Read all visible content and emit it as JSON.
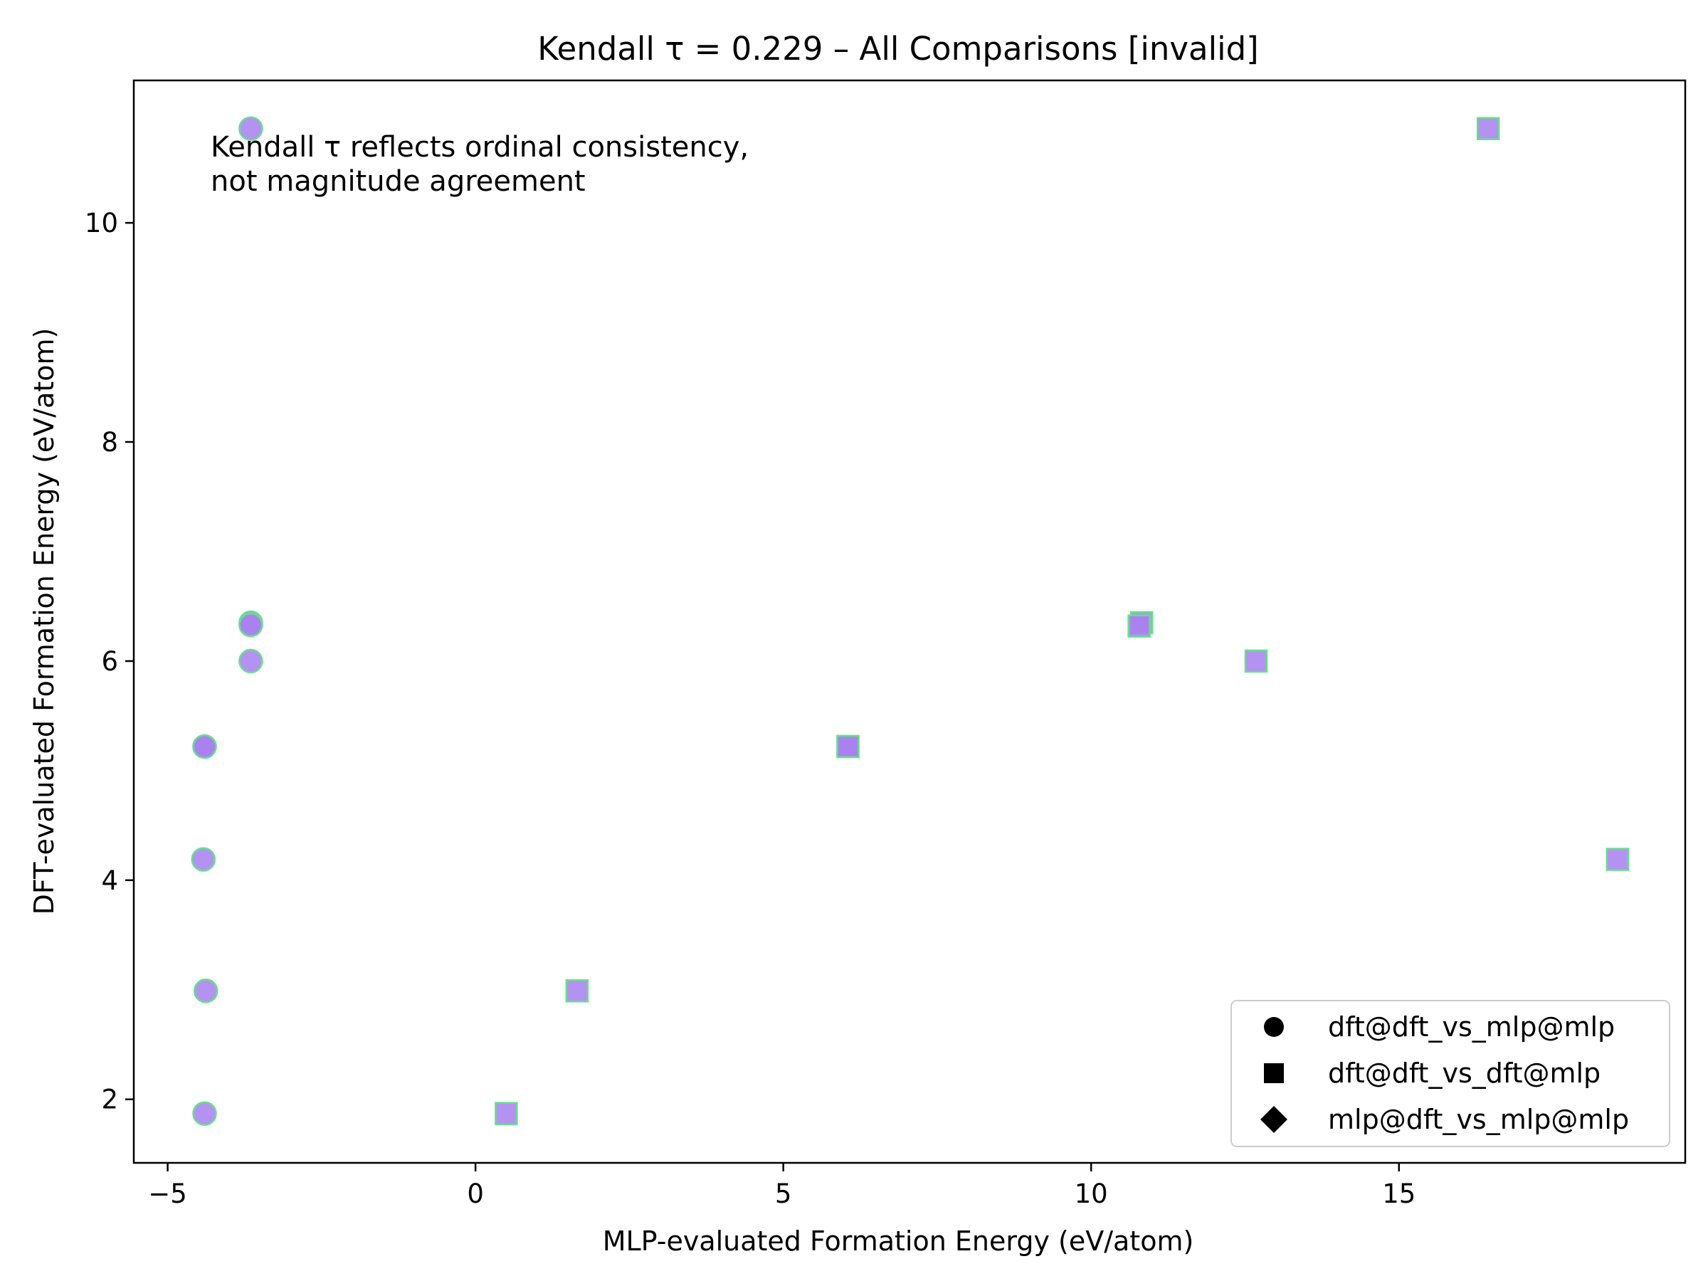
{
  "chart_data": {
    "type": "scatter",
    "title": "Kendall τ = 0.229 – All Comparisons [invalid]",
    "xlabel": "MLP-evaluated Formation Energy (eV/atom)",
    "ylabel": "DFT-evaluated Formation Energy (eV/atom)",
    "xlim": [
      -5.55,
      19.65
    ],
    "ylim": [
      1.42,
      11.3
    ],
    "xticks": [
      -5,
      0,
      5,
      10,
      15
    ],
    "xtick_labels": [
      "−5",
      "0",
      "5",
      "10",
      "15"
    ],
    "yticks": [
      2,
      4,
      6,
      8,
      10
    ],
    "ytick_labels": [
      "2",
      "4",
      "6",
      "8",
      "10"
    ],
    "grid": false,
    "legend_position": "lower-right",
    "annotation": [
      "Kendall τ reflects ordinal consistency,",
      "not magnitude agreement"
    ],
    "colors": {
      "fill": "#a77ff0",
      "edge": "#66e08a",
      "dark_fill": "#7b5fd0",
      "mid_fill": "#8a5ae8"
    },
    "series": [
      {
        "name": "dft@dft_vs_mlp@mlp",
        "marker": "circle",
        "points": [
          {
            "x": -3.65,
            "y": 10.86
          },
          {
            "x": -3.65,
            "y": 6.35
          },
          {
            "x": -3.65,
            "y": 6.33
          },
          {
            "x": -3.65,
            "y": 6.0
          },
          {
            "x": -4.4,
            "y": 5.22
          },
          {
            "x": -4.4,
            "y": 5.22
          },
          {
            "x": -4.42,
            "y": 4.19
          },
          {
            "x": -4.38,
            "y": 2.99
          },
          {
            "x": -4.4,
            "y": 1.87
          }
        ]
      },
      {
        "name": "dft@dft_vs_dft@mlp",
        "marker": "square",
        "points": [
          {
            "x": 16.45,
            "y": 10.86
          },
          {
            "x": 10.82,
            "y": 6.35
          },
          {
            "x": 10.78,
            "y": 6.32
          },
          {
            "x": 12.68,
            "y": 6.0
          },
          {
            "x": 6.05,
            "y": 5.22
          },
          {
            "x": 6.05,
            "y": 5.22
          },
          {
            "x": 18.55,
            "y": 4.19
          },
          {
            "x": 1.65,
            "y": 2.99
          },
          {
            "x": 0.5,
            "y": 1.87
          }
        ]
      },
      {
        "name": "mlp@dft_vs_mlp@mlp",
        "marker": "diamond",
        "points": []
      }
    ]
  }
}
